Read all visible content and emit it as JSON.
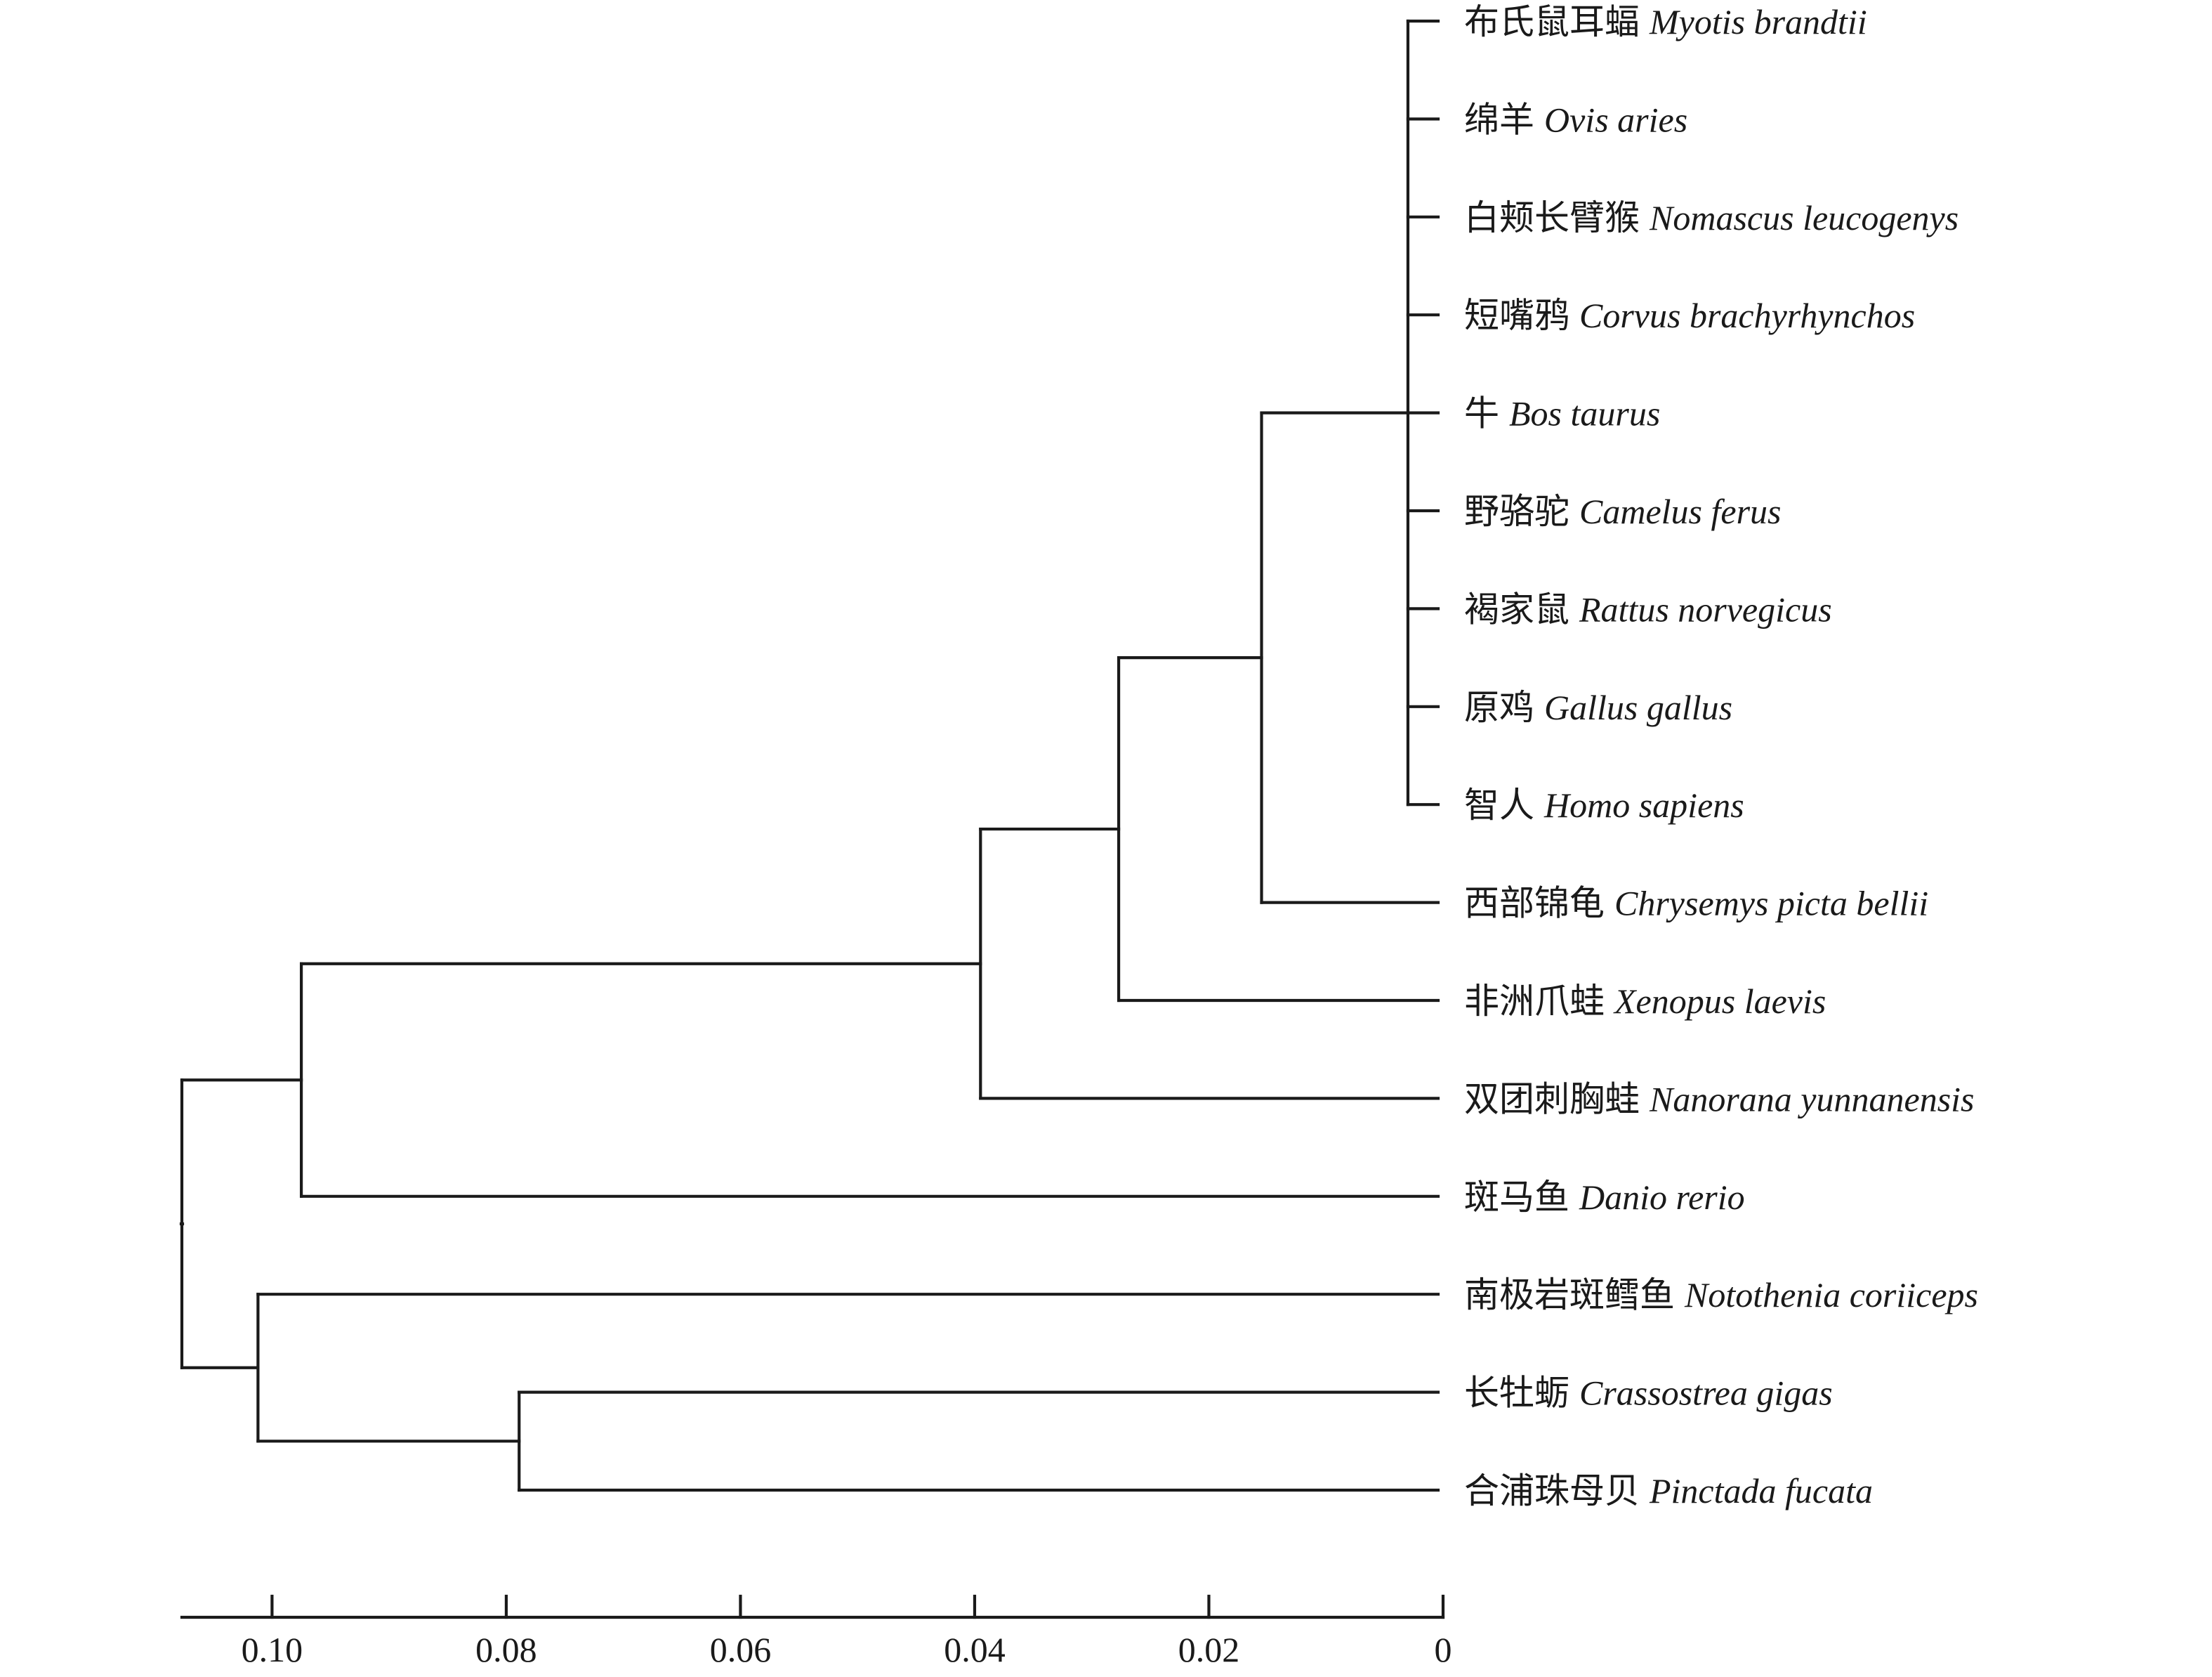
{
  "tree": {
    "leaves": [
      {
        "id": "L1",
        "cn": "布氏鼠耳蝠",
        "sci": "Myotis brandtii"
      },
      {
        "id": "L2",
        "cn": "绵羊",
        "sci": "Ovis aries"
      },
      {
        "id": "L3",
        "cn": "白颊长臂猴",
        "sci": "Nomascus leucogenys"
      },
      {
        "id": "L4",
        "cn": "短嘴鸦",
        "sci": "Corvus brachyrhynchos"
      },
      {
        "id": "L5",
        "cn": "牛",
        "sci": "Bos taurus"
      },
      {
        "id": "L6",
        "cn": "野骆驼",
        "sci": "Camelus ferus"
      },
      {
        "id": "L7",
        "cn": "褐家鼠",
        "sci": "Rattus norvegicus"
      },
      {
        "id": "L8",
        "cn": "原鸡",
        "sci": "Gallus gallus"
      },
      {
        "id": "L9",
        "cn": "智人",
        "sci": "Homo sapiens"
      },
      {
        "id": "L10",
        "cn": "西部锦龟",
        "sci": "Chrysemys picta bellii"
      },
      {
        "id": "L11",
        "cn": "非洲爪蛙",
        "sci": "Xenopus laevis"
      },
      {
        "id": "L12",
        "cn": "双团刺胸蛙",
        "sci": "Nanorana yunnanensis"
      },
      {
        "id": "L13",
        "cn": "斑马鱼",
        "sci": "Danio rerio"
      },
      {
        "id": "L14",
        "cn": "南极岩斑鳕鱼",
        "sci": "Notothenia coriiceps"
      },
      {
        "id": "L15",
        "cn": "长牡蛎",
        "sci": "Crassostrea gigas"
      },
      {
        "id": "L16",
        "cn": "合浦珠母贝",
        "sci": "Pinctada fucata"
      }
    ],
    "nodes": [
      {
        "id": "N1",
        "height": 0.003,
        "children": [
          "L1",
          "L2",
          "L3",
          "L4",
          "L5",
          "L6",
          "L7",
          "L8",
          "L9"
        ]
      },
      {
        "id": "N2",
        "height": 0.0155,
        "children": [
          "N1",
          "L10"
        ]
      },
      {
        "id": "N3",
        "height": 0.0277,
        "children": [
          "N2",
          "L11"
        ]
      },
      {
        "id": "N4",
        "height": 0.0395,
        "children": [
          "N3",
          "L12"
        ]
      },
      {
        "id": "N5",
        "height": 0.0975,
        "children": [
          "N4",
          "L13"
        ]
      },
      {
        "id": "N6",
        "height": 0.0789,
        "children": [
          "L15",
          "L16"
        ]
      },
      {
        "id": "N7",
        "height": 0.1012,
        "children": [
          "L14",
          "N6"
        ]
      },
      {
        "id": "N8",
        "height": 0.1077,
        "children": [
          "N5",
          "N7"
        ]
      }
    ],
    "root": "N8"
  },
  "axis": {
    "domain": [
      0.1077,
      0
    ],
    "ticks": [
      {
        "value": 0.1,
        "label": "0.10"
      },
      {
        "value": 0.08,
        "label": "0.08"
      },
      {
        "value": 0.06,
        "label": "0.06"
      },
      {
        "value": 0.04,
        "label": "0.04"
      },
      {
        "value": 0.02,
        "label": "0.02"
      },
      {
        "value": 0,
        "label": "0"
      }
    ]
  }
}
